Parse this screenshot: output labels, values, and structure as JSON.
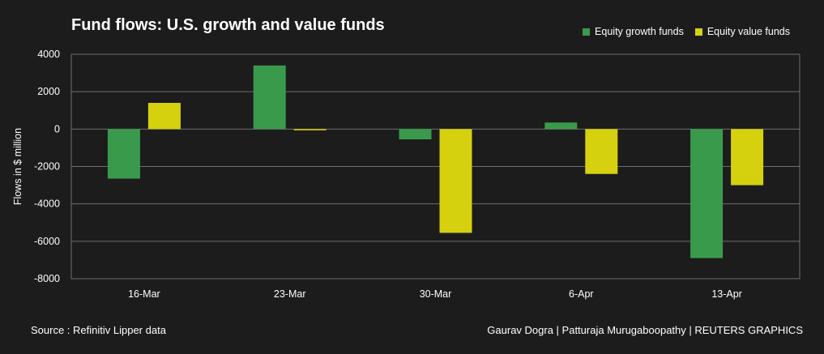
{
  "header": {
    "title": "Fund flows: U.S. growth and value funds"
  },
  "legend": {
    "items": [
      {
        "label": "Equity growth funds",
        "color": "#3a9a4c"
      },
      {
        "label": "Equity value funds",
        "color": "#d6d10f"
      }
    ]
  },
  "footer": {
    "source": "Source : Refinitiv Lipper data",
    "credit": "Gaurav Dogra | Patturaja Murugaboopathy | REUTERS GRAPHICS"
  },
  "colors": {
    "background": "#1c1c1c",
    "grid": "#6e6e6e",
    "growth": "#3a9a4c",
    "value": "#d6d10f"
  },
  "chart_data": {
    "type": "bar",
    "title": "Fund flows: U.S. growth and value funds",
    "xlabel": "",
    "ylabel": "Flows in $ million",
    "categories": [
      "16-Mar",
      "23-Mar",
      "30-Mar",
      "6-Apr",
      "13-Apr"
    ],
    "series": [
      {
        "name": "Equity growth funds",
        "values": [
          -2650,
          3400,
          -550,
          350,
          -6900
        ]
      },
      {
        "name": "Equity value funds",
        "values": [
          1400,
          -50,
          -5550,
          -2400,
          -3000
        ]
      }
    ],
    "ylim": [
      -8000,
      4000
    ],
    "yticks": [
      4000,
      2000,
      0,
      -2000,
      -4000,
      -6000,
      -8000
    ],
    "ytick_labels": [
      "4000",
      "2000",
      "0",
      "-2000",
      "-4000",
      "-6000",
      "-8000"
    ],
    "grid": true,
    "legend_position": "top-right"
  }
}
